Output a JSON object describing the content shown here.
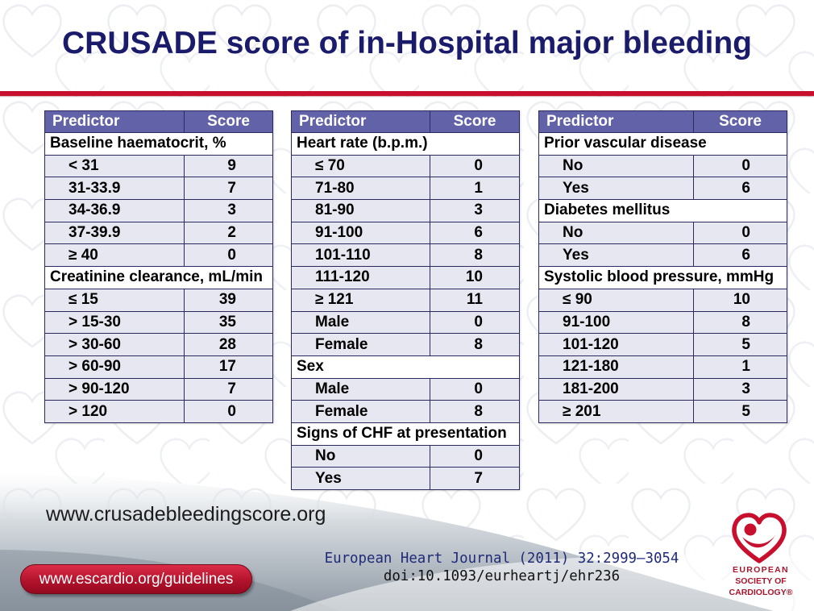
{
  "slide": {
    "title": "CRUSADE score of in-Hospital major bleeding",
    "website": "www.crusadebleedingscore.org",
    "guidelines_button": "www.escardio.org/guidelines",
    "citation": {
      "journal": "European Heart Journal (2011) 32:2999–3054",
      "doi": "doi:10.1093/eurheartj/ehr236"
    },
    "logo": {
      "icon": "esc-heart-logo-icon",
      "line1": "EUROPEAN",
      "line2": "SOCIETY OF",
      "line3": "CARDIOLOGY®"
    }
  },
  "colors": {
    "title": "#1b1b6b",
    "accent_red": "#c8102e",
    "table_header": "#6262a8",
    "table_row": "#e7e7f1",
    "table_section": "#ffffff",
    "table_border": "#2a2a5e",
    "citation": "#1f2a78"
  },
  "tables": [
    {
      "header": {
        "predictor": "Predictor",
        "score": "Score"
      },
      "rows": [
        {
          "section": "Baseline haematocrit, %"
        },
        {
          "predictor": "< 31",
          "score": "9"
        },
        {
          "predictor": "31-33.9",
          "score": "7"
        },
        {
          "predictor": "34-36.9",
          "score": "3"
        },
        {
          "predictor": "37-39.9",
          "score": "2"
        },
        {
          "predictor": "≥ 40",
          "score": "0"
        },
        {
          "section": "Creatinine clearance, mL/min"
        },
        {
          "predictor": "≤ 15",
          "score": "39"
        },
        {
          "predictor": "> 15-30",
          "score": "35"
        },
        {
          "predictor": "> 30-60",
          "score": "28"
        },
        {
          "predictor": "> 60-90",
          "score": "17"
        },
        {
          "predictor": "> 90-120",
          "score": "7"
        },
        {
          "predictor": "> 120",
          "score": "0"
        }
      ]
    },
    {
      "header": {
        "predictor": "Predictor",
        "score": "Score"
      },
      "rows": [
        {
          "section": "Heart rate (b.p.m.)"
        },
        {
          "predictor": "≤ 70",
          "score": "0"
        },
        {
          "predictor": "71-80",
          "score": "1"
        },
        {
          "predictor": "81-90",
          "score": "3"
        },
        {
          "predictor": "91-100",
          "score": "6"
        },
        {
          "predictor": "101-110",
          "score": "8"
        },
        {
          "predictor": "111-120",
          "score": "10"
        },
        {
          "predictor": "≥ 121",
          "score": "11"
        },
        {
          "predictor": "Male",
          "score": "0"
        },
        {
          "predictor": "Female",
          "score": "8"
        },
        {
          "section": "Sex"
        },
        {
          "predictor": "Male",
          "score": "0"
        },
        {
          "predictor": "Female",
          "score": "8"
        },
        {
          "section": "Signs of CHF at presentation"
        },
        {
          "predictor": "No",
          "score": "0"
        },
        {
          "predictor": "Yes",
          "score": "7"
        }
      ]
    },
    {
      "header": {
        "predictor": "Predictor",
        "score": "Score"
      },
      "rows": [
        {
          "section": "Prior vascular disease"
        },
        {
          "predictor": "No",
          "score": "0"
        },
        {
          "predictor": "Yes",
          "score": "6"
        },
        {
          "section": "Diabetes mellitus"
        },
        {
          "predictor": "No",
          "score": "0"
        },
        {
          "predictor": "Yes",
          "score": "6"
        },
        {
          "section": "Systolic blood pressure, mmHg"
        },
        {
          "predictor": "≤ 90",
          "score": "10"
        },
        {
          "predictor": "91-100",
          "score": "8"
        },
        {
          "predictor": "101-120",
          "score": "5"
        },
        {
          "predictor": "121-180",
          "score": "1"
        },
        {
          "predictor": "181-200",
          "score": "3"
        },
        {
          "predictor": "≥ 201",
          "score": "5"
        }
      ]
    }
  ]
}
